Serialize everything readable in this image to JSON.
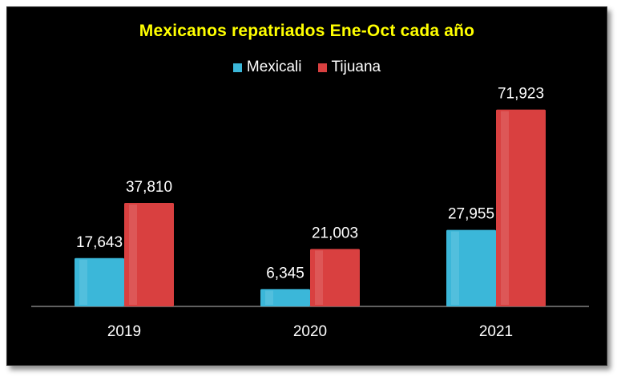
{
  "chart_data": {
    "type": "bar",
    "title": "Mexicanos repatriados Ene-Oct cada año",
    "categories": [
      "2019",
      "2020",
      "2021"
    ],
    "series": [
      {
        "name": "Mexicali",
        "values": [
          17643,
          6345,
          27955
        ],
        "labels": [
          "17,643",
          "6,345",
          "27,955"
        ],
        "color": "#3bb7d9"
      },
      {
        "name": "Tijuana",
        "values": [
          37810,
          21003,
          71923
        ],
        "labels": [
          "37,810",
          "21,003",
          "71,923"
        ],
        "color": "#d94040"
      }
    ],
    "ylim": [
      0,
      80000
    ],
    "xlabel": "",
    "ylabel": "",
    "legend": "top-center",
    "grid": false
  },
  "colors": {
    "background": "#000000",
    "title": "#ffff00",
    "text": "#ffffff"
  }
}
